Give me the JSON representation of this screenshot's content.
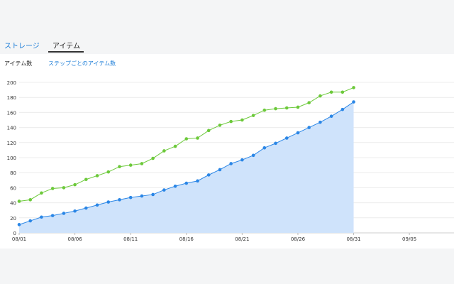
{
  "tabs": {
    "storage_label": "ストレージ",
    "items_label": "アイテム"
  },
  "subtabs": {
    "count_label": "アイテム数",
    "step_label": "ステップごとのアイテム数"
  },
  "colors": {
    "accent": "#1f7fd8",
    "series_blue": "#2a86e6",
    "series_green": "#6cc93a",
    "area_fill": "#cfe3fb"
  },
  "chart_data": {
    "type": "line",
    "ylim": [
      0,
      200
    ],
    "yticks": [
      0,
      20,
      40,
      60,
      80,
      100,
      120,
      140,
      160,
      180,
      200
    ],
    "x_days": [
      1,
      2,
      3,
      4,
      5,
      6,
      7,
      8,
      9,
      10,
      11,
      12,
      13,
      14,
      15,
      16,
      17,
      18,
      19,
      20,
      21,
      22,
      23,
      24,
      25,
      26,
      27,
      28,
      29,
      30,
      31
    ],
    "xticks": [
      {
        "day": 1,
        "label": "08/01"
      },
      {
        "day": 6,
        "label": "08/06"
      },
      {
        "day": 11,
        "label": "08/11"
      },
      {
        "day": 16,
        "label": "08/16"
      },
      {
        "day": 21,
        "label": "08/21"
      },
      {
        "day": 26,
        "label": "08/26"
      },
      {
        "day": 31,
        "label": "08/31"
      },
      {
        "day": 36,
        "label": "09/05"
      }
    ],
    "series": [
      {
        "color": "#6cc93a",
        "fill": false,
        "values": [
          42,
          44,
          53,
          59,
          60,
          64,
          71,
          76,
          81,
          88,
          90,
          92,
          99,
          109,
          115,
          125,
          126,
          136,
          143,
          148,
          150,
          156,
          163,
          165,
          166,
          167,
          173,
          182,
          187,
          187,
          193
        ]
      },
      {
        "color": "#2a86e6",
        "fill": true,
        "values": [
          11,
          16,
          21,
          23,
          26,
          29,
          33,
          37,
          41,
          44,
          47,
          49,
          51,
          57,
          62,
          66,
          69,
          77,
          84,
          92,
          97,
          103,
          113,
          119,
          126,
          133,
          140,
          147,
          155,
          164,
          174
        ]
      }
    ]
  }
}
